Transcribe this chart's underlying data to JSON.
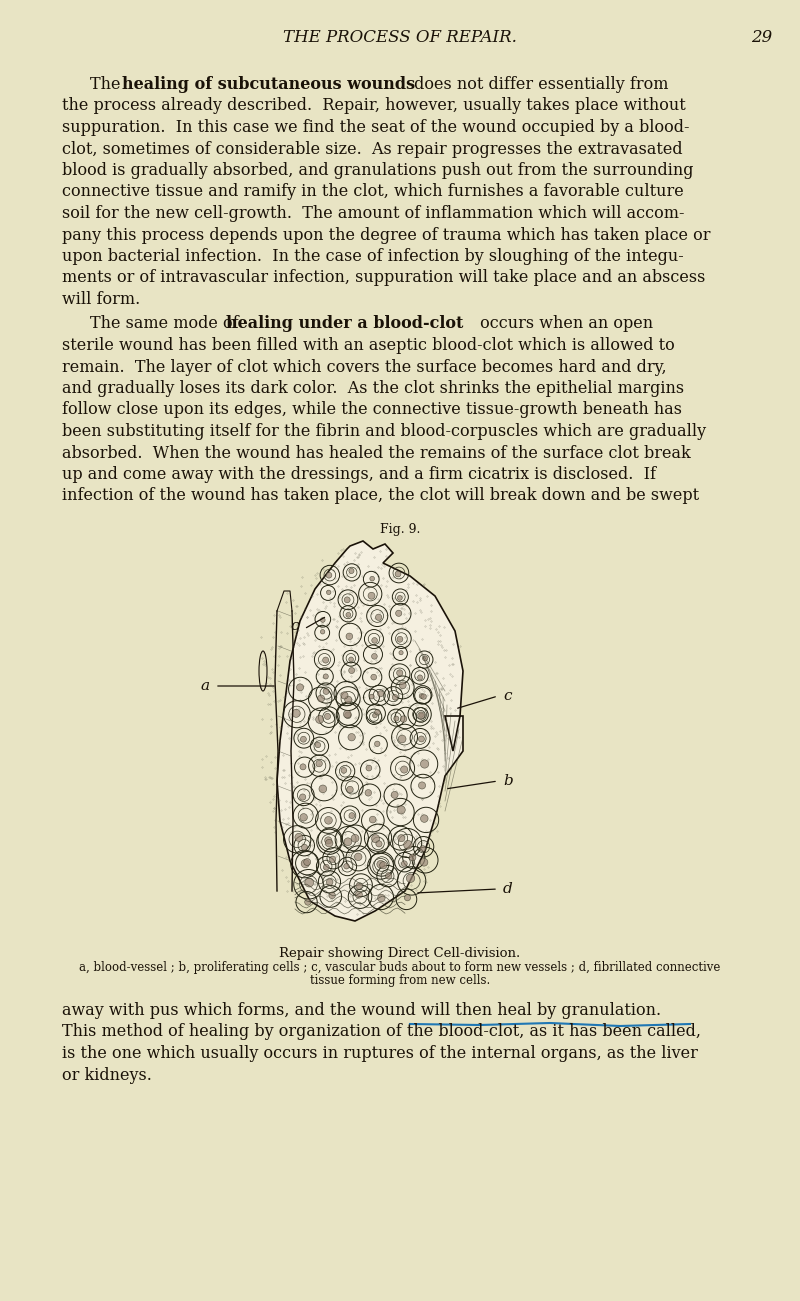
{
  "bg_color": "#e8e4c4",
  "page_number": "29",
  "header": "THE PROCESS OF REPAIR.",
  "text_color": "#1a1208",
  "fig_label": "Fig. 9.",
  "caption_line1": "Repair showing Direct Cell-division.",
  "caption_line2": "a, blood-vessel ; b, proliferating cells ; c, vascular buds about to form new vessels ; d, fibrillated connective",
  "caption_line3": "tissue forming from new cells.",
  "para1": [
    [
      "indent",
      "The ",
      "bold",
      "healing of subcutaneous wounds",
      "normal",
      " does not differ essentially from"
    ],
    [
      "normal",
      "the process already described.  Repair, however, usually takes place without"
    ],
    [
      "normal",
      "suppuration.  In this case we find the seat of the wound occupied by a blood-"
    ],
    [
      "normal",
      "clot, sometimes of considerable size.  As repair progresses the extravasated"
    ],
    [
      "normal",
      "blood is gradually absorbed, and granulations push out from the surrounding"
    ],
    [
      "normal",
      "connective tissue and ramify in the clot, which furnishes a favorable culture"
    ],
    [
      "normal",
      "soil for the new cell-growth.  The amount of inflammation which will accom-"
    ],
    [
      "normal",
      "pany this process depends upon the degree of trauma which has taken place or"
    ],
    [
      "normal",
      "upon bacterial infection.  In the case of infection by sloughing of the integu-"
    ],
    [
      "normal",
      "ments or of intravascular infection, suppuration will take place and an abscess"
    ],
    [
      "normal",
      "will form."
    ]
  ],
  "para2": [
    [
      "indent",
      "The same mode of ",
      "bold",
      "healing under a blood-clot",
      "normal",
      " occurs when an open"
    ],
    [
      "normal",
      "sterile wound has been filled with an aseptic blood-clot which is allowed to"
    ],
    [
      "normal",
      "remain.  The layer of clot which covers the surface becomes hard and dry,"
    ],
    [
      "normal",
      "and gradually loses its dark color.  As the clot shrinks the epithelial margins"
    ],
    [
      "normal",
      "follow close upon its edges, while the connective tissue-growth beneath has"
    ],
    [
      "normal",
      "been substituting itself for the fibrin and blood-corpuscles which are gradually"
    ],
    [
      "normal",
      "absorbed.  When the wound has healed the remains of the surface clot break"
    ],
    [
      "normal",
      "up and come away with the dressings, and a firm cicatrix is disclosed.  If"
    ],
    [
      "normal",
      "infection of the wound has taken place, the clot will break down and be swept"
    ]
  ],
  "para3": [
    [
      "normal",
      "away with pus which forms, and the wound will then heal by granulation."
    ],
    [
      "normal",
      "This method of healing by organization of the blood-clot, as it has been called,"
    ],
    [
      "normal",
      "is the one which usually occurs in ruptures of the internal organs, as the liver"
    ],
    [
      "normal",
      "or kidneys."
    ]
  ]
}
